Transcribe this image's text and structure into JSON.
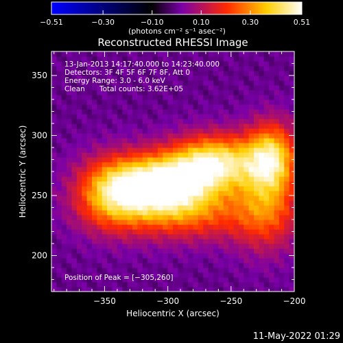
{
  "colorbar": {
    "tick_labels": [
      "−0.51",
      "−0.30",
      "−0.10",
      "0.10",
      "0.30",
      "0.51"
    ],
    "tick_values": [
      -0.51,
      -0.3,
      -0.1,
      0.1,
      0.3,
      0.51
    ],
    "range": [
      -0.51,
      0.51
    ],
    "units_label": "(photons cm⁻² s⁻¹ asec⁻²)",
    "colors": [
      "#0000ff",
      "#000000",
      "#7a00a8",
      "#ff2a00",
      "#ffcf00",
      "#ffffff"
    ]
  },
  "chart_data": {
    "type": "heatmap",
    "title": "Reconstructed RHESSI Image",
    "xlabel": "Heliocentric X (arcsec)",
    "ylabel": "Heliocentric Y (arcsec)",
    "xlim": [
      -392,
      -200
    ],
    "ylim": [
      170,
      370
    ],
    "x_tick_values": [
      -350,
      -300,
      -250,
      -200
    ],
    "y_tick_values": [
      200,
      250,
      300,
      350
    ],
    "x_tick_labels": [
      "−350",
      "−300",
      "−250",
      "−200"
    ],
    "y_tick_labels": [
      "200",
      "250",
      "300",
      "350"
    ],
    "annotations": [
      "13-Jan-2013 14:17:40.000 to 14:23:40.000",
      "Detectors: 3F 4F 5F 6F 7F 8F, Att 0",
      "Energy Range: 3.0 - 6.0 keV",
      "Clean",
      "Total counts: 3.62E+05"
    ],
    "peak_label": "Position of Peak = [−305,260]",
    "peak": [
      -305,
      260
    ],
    "colormap": "RHESSI hot (blue-black-purple-red-yellow-white)",
    "background_level": 0.0,
    "sources": [
      {
        "x": -305,
        "y": 260,
        "amp": 0.51,
        "sx": 28,
        "sy": 17
      },
      {
        "x": -262,
        "y": 278,
        "amp": 0.42,
        "sx": 24,
        "sy": 16
      },
      {
        "x": -218,
        "y": 282,
        "amp": 0.38,
        "sx": 14,
        "sy": 20
      },
      {
        "x": -345,
        "y": 252,
        "amp": 0.3,
        "sx": 20,
        "sy": 20
      },
      {
        "x": -285,
        "y": 235,
        "amp": 0.22,
        "sx": 40,
        "sy": 16
      },
      {
        "x": -222,
        "y": 240,
        "amp": 0.22,
        "sx": 18,
        "sy": 25
      }
    ]
  },
  "footer": {
    "date_stamp": "11-May-2022 01:29"
  }
}
